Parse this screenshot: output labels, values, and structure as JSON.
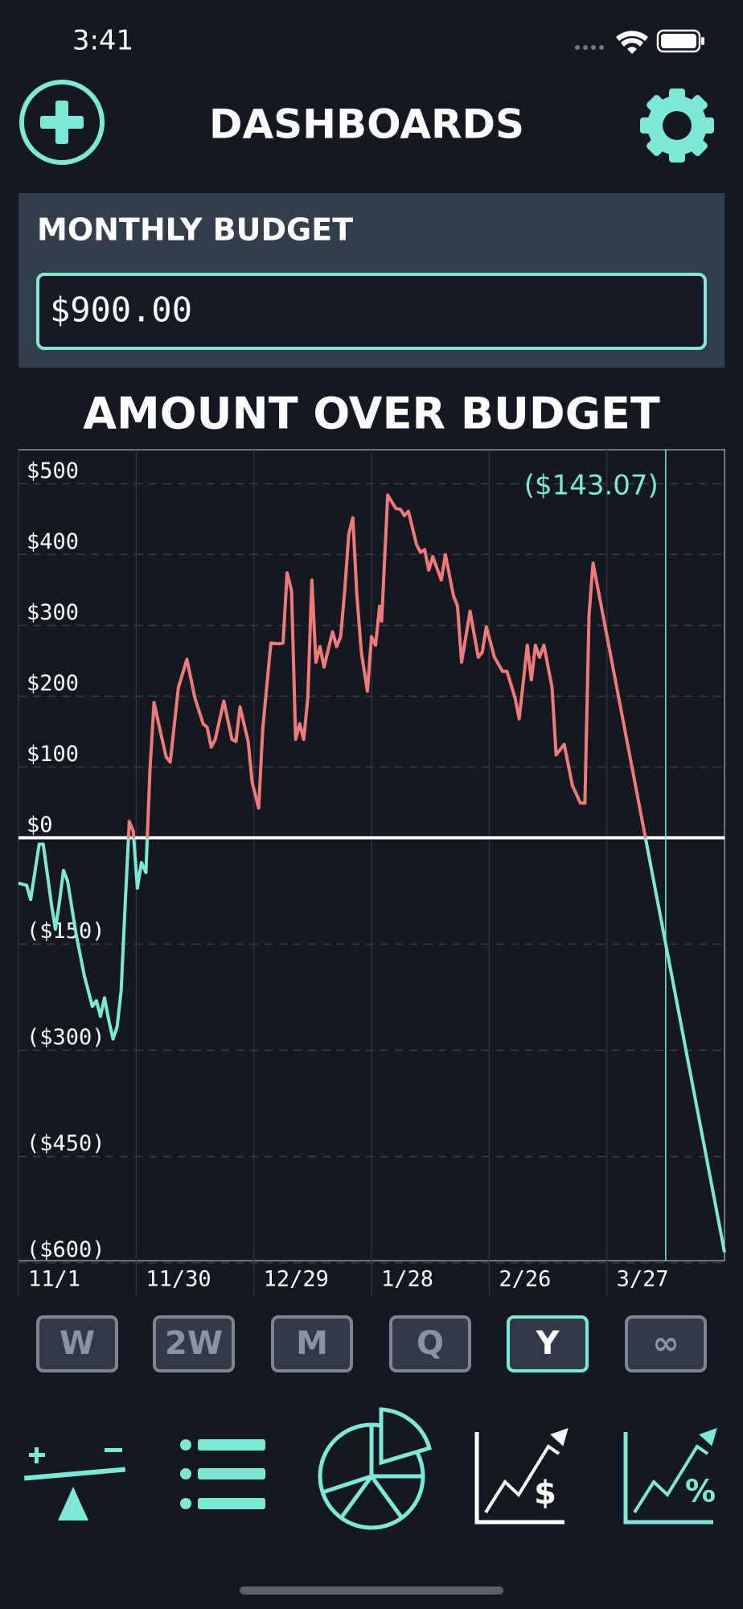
{
  "status_bar": {
    "time": "3:41"
  },
  "header": {
    "title": "DASHBOARDS"
  },
  "budget": {
    "label": "MONTHLY BUDGET",
    "value": "$900.00"
  },
  "chart_data": {
    "type": "line",
    "title": "AMOUNT OVER BUDGET",
    "x": [
      0,
      2.0,
      3.0,
      5.1,
      6.1,
      8.1,
      9.1,
      10.1,
      11.1,
      12.1,
      14.2,
      16.2,
      18.2,
      19.2,
      20.2,
      21.2,
      22.3,
      23.3,
      24.3,
      25.3,
      26.3,
      27.3,
      28.3,
      29.3,
      30.3,
      31.4,
      32.4,
      33.4,
      35.4,
      36.4,
      37.4,
      39.4,
      41.5,
      43.5,
      45.5,
      46.5,
      47.5,
      48.5,
      50.6,
      52.6,
      53.6,
      54.6,
      56.6,
      57.6,
      59.2,
      60.2,
      62.2,
      64.2,
      65.2,
      66.2,
      67.3,
      68.3,
      69.3,
      70.3,
      71.3,
      72.3,
      73.3,
      74.3,
      75.3,
      77.4,
      78.4,
      79.4,
      80.4,
      81.4,
      82.4,
      83.4,
      84.5,
      86.0,
      87.0,
      88.0,
      89.0,
      89.5,
      91.0,
      93.0,
      94.1,
      95.1,
      96.1,
      98.1,
      99.1,
      100.1,
      101.1,
      102.1,
      104.2,
      105.2,
      107.2,
      108.2,
      109.2,
      111.3,
      113.3,
      114.3,
      115.3,
      117.3,
      119.3,
      120.4,
      122.4,
      123.4,
      125.4,
      126.4,
      127.4,
      128.4,
      129.5,
      131.5,
      132.5,
      134.5,
      136.5,
      138.5,
      139.6,
      140.6,
      141.6,
      174.0
    ],
    "series": [
      {
        "positive_color": "#f07a7a",
        "negative_color": "#7ee8d6",
        "values": [
          -64,
          -67,
          -87,
          -9,
          -9,
          -93,
          -129,
          -90,
          -46,
          -61,
          -136,
          -194,
          -238,
          -230,
          -252,
          -226,
          -259,
          -284,
          -267,
          -216,
          -93,
          23,
          9,
          -71,
          -35,
          -49,
          96,
          191,
          139,
          114,
          107,
          212,
          252,
          197,
          161,
          156,
          128,
          139,
          193,
          139,
          136,
          185,
          136,
          78,
          42,
          154,
          275,
          274,
          275,
          374,
          349,
          139,
          161,
          139,
          197,
          364,
          248,
          270,
          241,
          291,
          270,
          284,
          349,
          429,
          452,
          342,
          262,
          207,
          284,
          272,
          327,
          306,
          484,
          465,
          464,
          455,
          461,
          414,
          403,
          407,
          378,
          397,
          364,
          400,
          342,
          327,
          248,
          320,
          255,
          262,
          298,
          255,
          235,
          235,
          197,
          168,
          272,
          223,
          272,
          255,
          272,
          212,
          117,
          132,
          74,
          49,
          49,
          313,
          388,
          -585
        ]
      }
    ],
    "xlim": [
      0,
      174
    ],
    "xticks": [
      {
        "value": 0,
        "label": "11/1"
      },
      {
        "value": 29,
        "label": "11/30"
      },
      {
        "value": 58,
        "label": "12/29"
      },
      {
        "value": 87,
        "label": "1/28"
      },
      {
        "value": 116,
        "label": "2/26"
      },
      {
        "value": 145,
        "label": "3/27"
      }
    ],
    "ylim": [
      -597,
      548
    ],
    "yticks": [
      {
        "value": 500,
        "label": "$500"
      },
      {
        "value": 400,
        "label": "$400"
      },
      {
        "value": 300,
        "label": "$300"
      },
      {
        "value": 200,
        "label": "$200"
      },
      {
        "value": 100,
        "label": "$100"
      },
      {
        "value": 0,
        "label": "$0"
      },
      {
        "value": -150,
        "label": "($150)"
      },
      {
        "value": -300,
        "label": "($300)"
      },
      {
        "value": -450,
        "label": "($450)"
      },
      {
        "value": -600,
        "label": "($600)"
      }
    ],
    "grid": true,
    "marker": {
      "x": 159.5,
      "label": "($143.07)"
    }
  },
  "period_buttons": [
    "W",
    "2W",
    "M",
    "Q",
    "Y",
    "∞"
  ],
  "selected_period": 4
}
